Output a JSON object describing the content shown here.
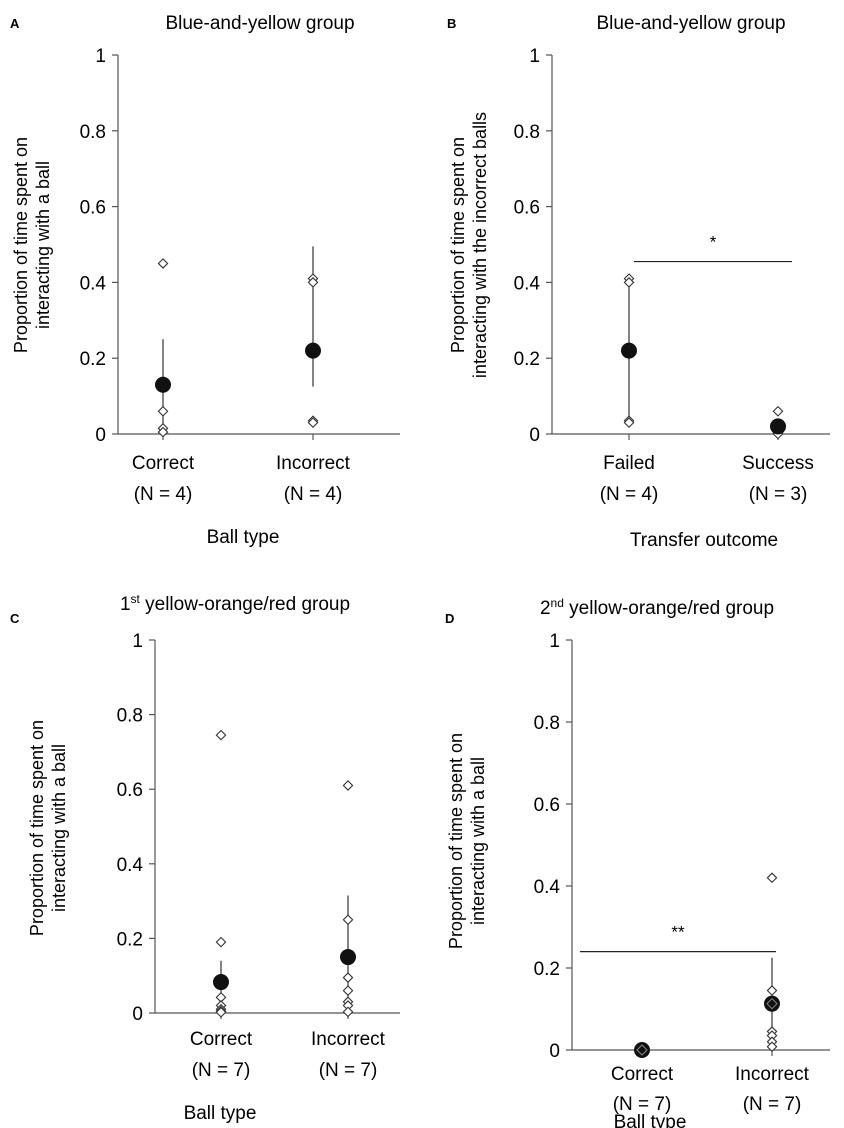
{
  "chart_data": [
    {
      "type": "scatter",
      "panel": "A",
      "title": "Blue-and-yellow group",
      "title_sup": "",
      "title_rest": "",
      "ylabel_lines": [
        "Proportion of time spent on",
        "interacting with a ball"
      ],
      "xlabel": "Ball type",
      "ylim": [
        0,
        1
      ],
      "yticks": [
        "0",
        "0.2",
        "0.4",
        "0.6",
        "0.8",
        "1"
      ],
      "categories": [
        {
          "label": "Correct",
          "n": "(N = 4)",
          "mean": 0.13,
          "err": [
            0.0,
            0.25
          ],
          "points": [
            0.45,
            0.06,
            0.015,
            0.005
          ]
        },
        {
          "label": "Incorrect",
          "n": "(N = 4)",
          "mean": 0.22,
          "err": [
            0.125,
            0.495
          ],
          "points": [
            0.41,
            0.4,
            0.035,
            0.03
          ]
        }
      ],
      "significance": null
    },
    {
      "type": "scatter",
      "panel": "B",
      "title": "Blue-and-yellow group",
      "title_sup": "",
      "title_rest": "",
      "ylabel_lines": [
        "Proportion of time spent on",
        "interacting with the incorrect balls"
      ],
      "xlabel": "Transfer outcome",
      "ylim": [
        0,
        1
      ],
      "yticks": [
        "0",
        "0.2",
        "0.4",
        "0.6",
        "0.8",
        "1"
      ],
      "categories": [
        {
          "label": "Failed",
          "n": "(N = 4)",
          "mean": 0.22,
          "err": [
            0.03,
            0.41
          ],
          "points": [
            0.41,
            0.4,
            0.035,
            0.03
          ]
        },
        {
          "label": "Success",
          "n": "(N = 3)",
          "mean": 0.02,
          "err": [
            0.0,
            0.04
          ],
          "points": [
            0.06,
            0.003,
            0.0
          ]
        }
      ],
      "significance": {
        "label": "*",
        "y": 0.455
      }
    },
    {
      "type": "scatter",
      "panel": "C",
      "title": "",
      "title_sup": "1st",
      "title_rest": " yellow-orange/red group",
      "ylabel_lines": [
        "Proportion of time spent on",
        "interacting with a ball"
      ],
      "xlabel": "Ball type",
      "ylim": [
        0,
        1
      ],
      "yticks": [
        "0",
        "0.2",
        "0.4",
        "0.6",
        "0.8",
        "1"
      ],
      "categories": [
        {
          "label": "Correct",
          "n": "(N = 7)",
          "mean": 0.083,
          "err": [
            0.025,
            0.14
          ],
          "points": [
            0.745,
            0.19,
            0.042,
            0.02,
            0.01,
            0.005,
            0.002
          ]
        },
        {
          "label": "Incorrect",
          "n": "(N = 7)",
          "mean": 0.15,
          "err": [
            0.0,
            0.315
          ],
          "points": [
            0.61,
            0.25,
            0.095,
            0.06,
            0.03,
            0.02,
            0.003
          ]
        }
      ],
      "significance": null
    },
    {
      "type": "scatter",
      "panel": "D",
      "title": "",
      "title_sup": "2nd",
      "title_rest": " yellow-orange/red group",
      "ylabel_lines": [
        "Proportion of time spent on",
        "interacting with a ball"
      ],
      "xlabel": "Ball type",
      "ylim": [
        0,
        1
      ],
      "yticks": [
        "0",
        "0.2",
        "0.4",
        "0.6",
        "0.8",
        "1"
      ],
      "categories": [
        {
          "label": "Correct",
          "n": "(N = 7)",
          "mean": 0.0,
          "err": [
            0.0,
            0.0
          ],
          "points": [
            0.003,
            0.002,
            0.001,
            0.0,
            0.0,
            0.0,
            0.0
          ]
        },
        {
          "label": "Incorrect",
          "n": "(N = 7)",
          "mean": 0.113,
          "err": [
            0.0,
            0.225
          ],
          "points": [
            0.42,
            0.145,
            0.12,
            0.045,
            0.035,
            0.02,
            0.008
          ]
        }
      ],
      "significance": {
        "label": "**",
        "y": 0.24
      }
    }
  ]
}
